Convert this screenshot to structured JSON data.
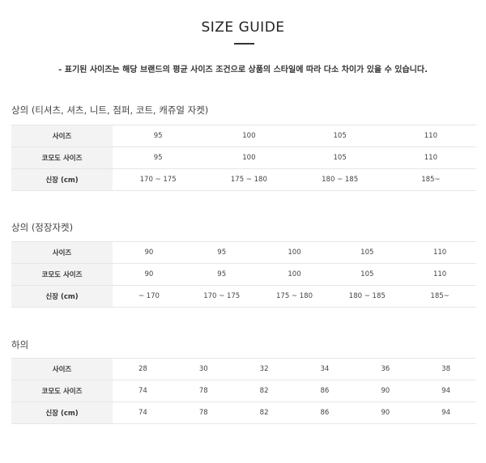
{
  "header": {
    "title": "SIZE GUIDE",
    "notice": "- 표기된 사이즈는 해당 브랜드의 평균 사이즈 조건으로 상품의 스타일에 따라 다소 차이가 있을 수 있습니다."
  },
  "sections": [
    {
      "title": "상의 (티셔츠, 셔츠, 니트, 점퍼, 코트, 캐쥬얼 자켓)",
      "rows": [
        {
          "label": "사이즈",
          "values": [
            "95",
            "100",
            "105",
            "110"
          ]
        },
        {
          "label": "코모도 사이즈",
          "values": [
            "95",
            "100",
            "105",
            "110"
          ]
        },
        {
          "label": "신장 (cm)",
          "values": [
            "170 ~ 175",
            "175 ~ 180",
            "180 ~ 185",
            "185~"
          ]
        }
      ]
    },
    {
      "title": "상의 (정장자켓)",
      "rows": [
        {
          "label": "사이즈",
          "values": [
            "90",
            "95",
            "100",
            "105",
            "110"
          ]
        },
        {
          "label": "코모도 사이즈",
          "values": [
            "90",
            "95",
            "100",
            "105",
            "110"
          ]
        },
        {
          "label": "신장 (cm)",
          "values": [
            "~ 170",
            "170 ~ 175",
            "175 ~ 180",
            "180 ~ 185",
            "185~"
          ]
        }
      ]
    },
    {
      "title": "하의",
      "rows": [
        {
          "label": "사이즈",
          "values": [
            "28",
            "30",
            "32",
            "34",
            "36",
            "38"
          ]
        },
        {
          "label": "코모도 사이즈",
          "values": [
            "74",
            "78",
            "82",
            "86",
            "90",
            "94"
          ]
        },
        {
          "label": "신장 (cm)",
          "values": [
            "74",
            "78",
            "82",
            "86",
            "90",
            "94"
          ]
        }
      ]
    }
  ]
}
